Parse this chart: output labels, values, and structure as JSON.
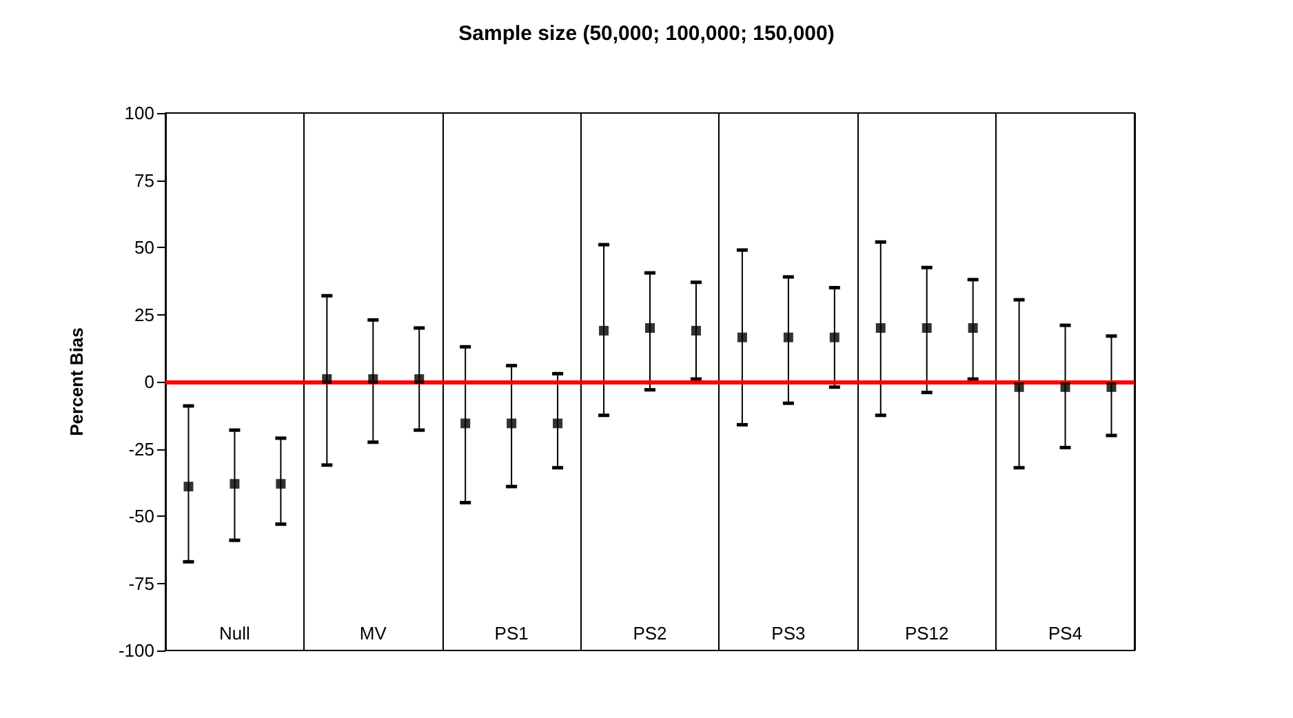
{
  "chart_data": {
    "type": "scatter",
    "title": "Sample size (50,000; 100,000; 150,000)",
    "ylabel": "Percent Bias",
    "categories": [
      null,
      "Null",
      null,
      null,
      "MV",
      null,
      null,
      "PS1",
      null,
      null,
      "PS2",
      null,
      null,
      "PS3",
      null,
      null,
      "PS12",
      null,
      null,
      "PS4",
      null
    ],
    "series": [
      {
        "color": "#000000",
        "values": [
          -39,
          -38,
          -38,
          1,
          1,
          1,
          -15.5,
          -15.5,
          -15.5,
          19,
          20,
          19,
          16.5,
          16.5,
          16.5,
          20,
          20,
          20,
          -2,
          -2,
          -2
        ],
        "errors": [
          [
            -67,
            -9
          ],
          [
            -59,
            -18
          ],
          [
            -53,
            -21
          ],
          [
            -31,
            32
          ],
          [
            -22.5,
            23
          ],
          [
            -18,
            20
          ],
          [
            -45,
            13
          ],
          [
            -39,
            6
          ],
          [
            -32,
            3
          ],
          [
            -12.5,
            51
          ],
          [
            -3,
            40.5
          ],
          [
            1,
            37
          ],
          [
            -16,
            49
          ],
          [
            -8,
            39
          ],
          [
            -2,
            35
          ],
          [
            -12.5,
            52
          ],
          [
            -4,
            42.5
          ],
          [
            1,
            38
          ],
          [
            -32,
            30.5
          ],
          [
            -24.5,
            21
          ],
          [
            -20,
            17
          ]
        ]
      }
    ],
    "ylim": [
      -100,
      100
    ],
    "yticks": [
      -100,
      -75,
      -50,
      -25,
      0,
      25,
      50,
      75,
      100
    ],
    "ref_lines": [
      {
        "axis": "y",
        "value": 0,
        "color": "#ff0000",
        "line_style": "solid"
      }
    ],
    "grid": "x",
    "marker": "square"
  }
}
